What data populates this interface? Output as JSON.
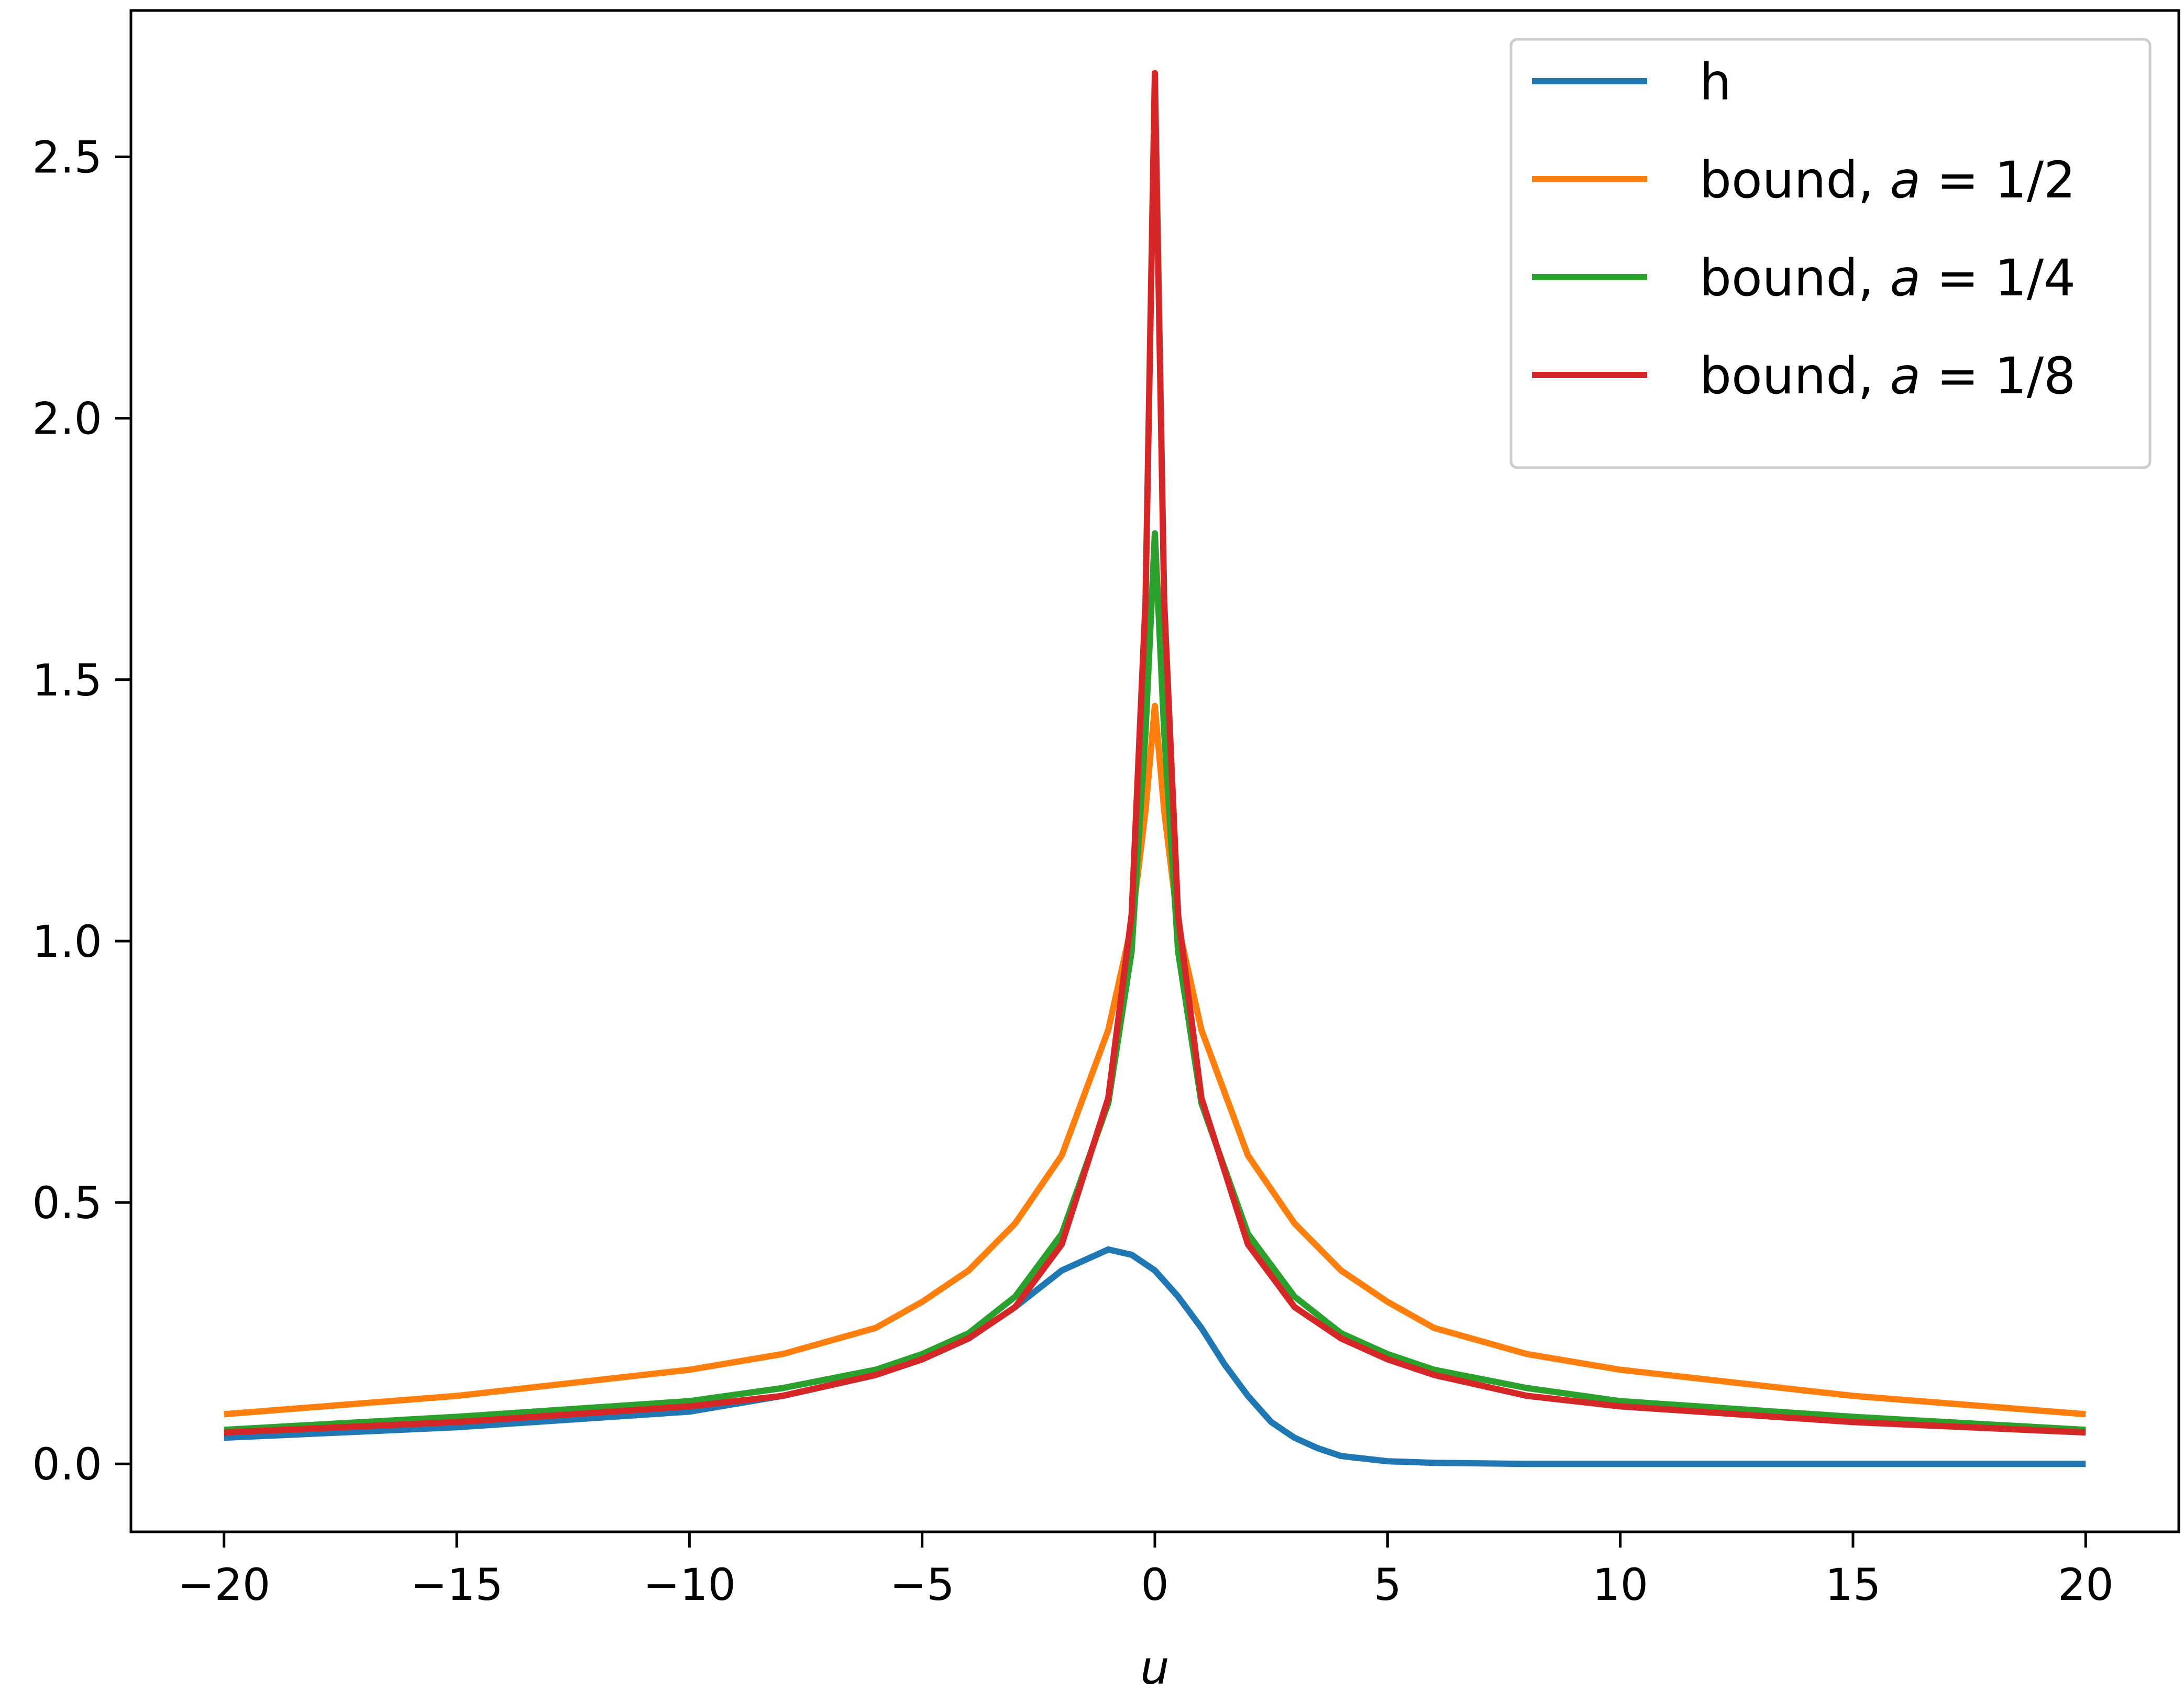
{
  "chart_data": {
    "type": "line",
    "title": "",
    "xlabel": "u",
    "ylabel": "",
    "xlim": [
      -22,
      22
    ],
    "ylim": [
      -0.13,
      2.78
    ],
    "grid": false,
    "legend_position": "top-right",
    "x_ticks": [
      {
        "value": -20,
        "label": "−20"
      },
      {
        "value": -15,
        "label": "−15"
      },
      {
        "value": -10,
        "label": "−10"
      },
      {
        "value": -5,
        "label": "−5"
      },
      {
        "value": 0,
        "label": "0"
      },
      {
        "value": 5,
        "label": "5"
      },
      {
        "value": 10,
        "label": "10"
      },
      {
        "value": 15,
        "label": "15"
      },
      {
        "value": 20,
        "label": "20"
      }
    ],
    "y_ticks": [
      {
        "value": 0.0,
        "label": "0.0"
      },
      {
        "value": 0.5,
        "label": "0.5"
      },
      {
        "value": 1.0,
        "label": "1.0"
      },
      {
        "value": 1.5,
        "label": "1.5"
      },
      {
        "value": 2.0,
        "label": "2.0"
      },
      {
        "value": 2.5,
        "label": "2.5"
      }
    ],
    "series": [
      {
        "name": "h",
        "label_prefix": "h",
        "label_var": "",
        "label_value": "",
        "color": "#1f77b4",
        "x": [
          -20,
          -15,
          -10,
          -8,
          -6,
          -5,
          -4,
          -3,
          -2,
          -1,
          -0.5,
          0,
          0.5,
          1,
          1.5,
          2,
          2.5,
          3,
          3.5,
          4,
          5,
          6,
          8,
          10,
          15,
          20
        ],
        "y": [
          0.05,
          0.07,
          0.1,
          0.13,
          0.17,
          0.2,
          0.24,
          0.3,
          0.37,
          0.41,
          0.4,
          0.37,
          0.32,
          0.26,
          0.19,
          0.13,
          0.08,
          0.05,
          0.03,
          0.015,
          0.005,
          0.002,
          0.0,
          0.0,
          0.0,
          0.0
        ]
      },
      {
        "name": "bound, a = 1/2",
        "label_prefix": "bound, ",
        "label_var": "a",
        "label_value": " = 1/2",
        "color": "#ff7f0e",
        "x": [
          -20,
          -15,
          -10,
          -8,
          -6,
          -5,
          -4,
          -3,
          -2,
          -1,
          -0.5,
          -0.2,
          0,
          0.2,
          0.5,
          1,
          2,
          3,
          4,
          5,
          6,
          8,
          10,
          15,
          20
        ],
        "y": [
          0.095,
          0.13,
          0.18,
          0.21,
          0.26,
          0.31,
          0.37,
          0.46,
          0.59,
          0.83,
          1.03,
          1.25,
          1.45,
          1.25,
          1.03,
          0.83,
          0.59,
          0.46,
          0.37,
          0.31,
          0.26,
          0.21,
          0.18,
          0.13,
          0.095
        ]
      },
      {
        "name": "bound, a = 1/4",
        "label_prefix": "bound, ",
        "label_var": "a",
        "label_value": " = 1/4",
        "color": "#2ca02c",
        "x": [
          -20,
          -15,
          -10,
          -8,
          -6,
          -5,
          -4,
          -3,
          -2,
          -1,
          -0.5,
          -0.2,
          0,
          0.2,
          0.5,
          1,
          2,
          3,
          4,
          5,
          6,
          8,
          10,
          15,
          20
        ],
        "y": [
          0.065,
          0.09,
          0.12,
          0.145,
          0.18,
          0.21,
          0.25,
          0.32,
          0.44,
          0.69,
          0.98,
          1.4,
          1.78,
          1.4,
          0.98,
          0.69,
          0.44,
          0.32,
          0.25,
          0.21,
          0.18,
          0.145,
          0.12,
          0.09,
          0.065
        ]
      },
      {
        "name": "bound, a = 1/8",
        "label_prefix": "bound, ",
        "label_var": "a",
        "label_value": " = 1/8",
        "color": "#d62728",
        "x": [
          -20,
          -15,
          -10,
          -8,
          -6,
          -5,
          -4,
          -3,
          -2,
          -1,
          -0.5,
          -0.2,
          0,
          0.2,
          0.5,
          1,
          2,
          3,
          4,
          5,
          6,
          8,
          10,
          15,
          20
        ],
        "y": [
          0.06,
          0.08,
          0.11,
          0.13,
          0.17,
          0.2,
          0.24,
          0.3,
          0.42,
          0.7,
          1.05,
          1.65,
          2.66,
          1.65,
          1.05,
          0.7,
          0.42,
          0.3,
          0.24,
          0.2,
          0.17,
          0.13,
          0.11,
          0.08,
          0.06
        ]
      }
    ]
  }
}
